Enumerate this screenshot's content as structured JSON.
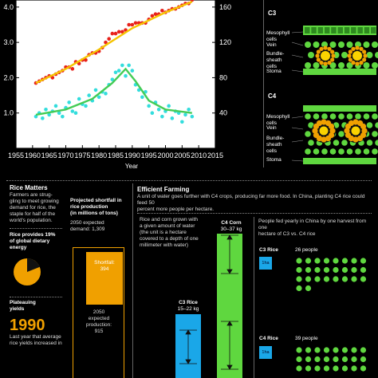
{
  "chart_data": {
    "type": "scatter",
    "xlabel": "Year",
    "x_ticks": [
      "1955",
      "1960",
      "1965",
      "1970",
      "1975",
      "1980",
      "1985",
      "1990",
      "1995",
      "2000",
      "2005",
      "2010",
      "2015"
    ],
    "y_left_ticks": [
      "1.0",
      "2.0",
      "3.0",
      "4.0"
    ],
    "y_right_ticks": [
      "40",
      "80",
      "120",
      "160"
    ],
    "xlim": [
      1955,
      2015
    ],
    "ylim_left": [
      0,
      4.2
    ],
    "ylim_right": [
      0,
      168
    ],
    "series": [
      {
        "axis": "left",
        "color": "#e8221b",
        "fit_color": "#f5c400",
        "points": [
          [
            1961,
            1.85
          ],
          [
            1962,
            1.9
          ],
          [
            1963,
            1.95
          ],
          [
            1964,
            2.0
          ],
          [
            1965,
            2.05
          ],
          [
            1966,
            2.0
          ],
          [
            1967,
            2.1
          ],
          [
            1968,
            2.15
          ],
          [
            1969,
            2.2
          ],
          [
            1970,
            2.3
          ],
          [
            1971,
            2.3
          ],
          [
            1972,
            2.25
          ],
          [
            1973,
            2.45
          ],
          [
            1974,
            2.4
          ],
          [
            1975,
            2.5
          ],
          [
            1976,
            2.5
          ],
          [
            1977,
            2.65
          ],
          [
            1978,
            2.7
          ],
          [
            1979,
            2.7
          ],
          [
            1980,
            2.75
          ],
          [
            1981,
            2.85
          ],
          [
            1982,
            3.0
          ],
          [
            1983,
            3.1
          ],
          [
            1984,
            3.25
          ],
          [
            1985,
            3.25
          ],
          [
            1986,
            3.3
          ],
          [
            1987,
            3.3
          ],
          [
            1988,
            3.35
          ],
          [
            1989,
            3.5
          ],
          [
            1990,
            3.5
          ],
          [
            1991,
            3.55
          ],
          [
            1992,
            3.55
          ],
          [
            1993,
            3.55
          ],
          [
            1994,
            3.55
          ],
          [
            1995,
            3.65
          ],
          [
            1996,
            3.75
          ],
          [
            1997,
            3.8
          ],
          [
            1998,
            3.8
          ],
          [
            1999,
            3.9
          ],
          [
            2000,
            3.85
          ],
          [
            2001,
            3.9
          ],
          [
            2002,
            3.95
          ],
          [
            2003,
            3.95
          ],
          [
            2004,
            4.0
          ],
          [
            2005,
            4.05
          ],
          [
            2006,
            4.1
          ],
          [
            2007,
            4.1
          ],
          [
            2008,
            4.2
          ]
        ],
        "fit": [
          [
            1961,
            1.85
          ],
          [
            1970,
            2.25
          ],
          [
            1980,
            2.8
          ],
          [
            1990,
            3.4
          ],
          [
            2000,
            3.85
          ],
          [
            2008,
            4.15
          ]
        ]
      },
      {
        "axis": "right",
        "color": "#33dddd",
        "fit_color": "#44cc55",
        "points": [
          [
            1961,
            36
          ],
          [
            1962,
            40
          ],
          [
            1963,
            34
          ],
          [
            1964,
            44
          ],
          [
            1965,
            38
          ],
          [
            1966,
            42
          ],
          [
            1967,
            48
          ],
          [
            1968,
            40
          ],
          [
            1969,
            36
          ],
          [
            1970,
            46
          ],
          [
            1971,
            52
          ],
          [
            1972,
            42
          ],
          [
            1973,
            40
          ],
          [
            1974,
            56
          ],
          [
            1975,
            50
          ],
          [
            1976,
            48
          ],
          [
            1977,
            60
          ],
          [
            1978,
            54
          ],
          [
            1979,
            66
          ],
          [
            1980,
            58
          ],
          [
            1981,
            64
          ],
          [
            1982,
            62
          ],
          [
            1983,
            72
          ],
          [
            1984,
            78
          ],
          [
            1985,
            86
          ],
          [
            1986,
            88
          ],
          [
            1987,
            94
          ],
          [
            1988,
            82
          ],
          [
            1989,
            94
          ],
          [
            1990,
            88
          ],
          [
            1991,
            72
          ],
          [
            1992,
            66
          ],
          [
            1993,
            58
          ],
          [
            1994,
            64
          ],
          [
            1995,
            48
          ],
          [
            1996,
            40
          ],
          [
            1997,
            52
          ],
          [
            1998,
            44
          ],
          [
            1999,
            36
          ],
          [
            2000,
            42
          ],
          [
            2001,
            48
          ],
          [
            2002,
            34
          ],
          [
            2003,
            42
          ],
          [
            2004,
            40
          ],
          [
            2005,
            30
          ],
          [
            2006,
            38
          ],
          [
            2007,
            44
          ],
          [
            2008,
            36
          ]
        ],
        "fit": [
          [
            1961,
            38
          ],
          [
            1970,
            44
          ],
          [
            1978,
            56
          ],
          [
            1984,
            74
          ],
          [
            1988,
            90
          ],
          [
            1991,
            76
          ],
          [
            1995,
            54
          ],
          [
            2000,
            44
          ],
          [
            2008,
            40
          ]
        ]
      }
    ]
  },
  "c3_panel": {
    "title": "C3",
    "labels": [
      "Mesophyll cells",
      "Vein",
      "Bundle-sheath cells",
      "Stoma"
    ]
  },
  "c4_panel": {
    "title": "C4",
    "labels": [
      "Mesophyll cells",
      "Vein",
      "Bundle-sheath cells",
      "Stoma"
    ]
  },
  "rice_matters": {
    "title": "Rice Matters",
    "intro": [
      "Farmers are strug-",
      "gling to meet growing",
      "demand for rice, the",
      "staple for half of the",
      "world's population."
    ],
    "calorie_title": [
      "Rice provides 19%",
      "of global dietary",
      "energy"
    ],
    "calorie_share": 0.19,
    "plateau_title": [
      "Plateauing",
      "yields"
    ],
    "big_year": "1990",
    "bottom_text": [
      "Last year that average",
      "rice yields increased in"
    ]
  },
  "shortfall": {
    "title": [
      "Projected shortfall in",
      "rice production",
      "(in millions of tons)"
    ],
    "demand": [
      "2050 expected",
      "demand: 1,309"
    ],
    "box_label": [
      "Shortfall:",
      "394"
    ],
    "production": [
      "2050",
      "expected",
      "production:",
      "915"
    ]
  },
  "efficient": {
    "title": "Efficient Farming",
    "intro": [
      "A unit of water goes further with C4 crops, producing far more food. In China, planting C4 rice could feed 50",
      "percent more people per hectare."
    ],
    "water_text": [
      "Rice and corn grown with",
      "a given amount of water",
      "(the unit is a hectare",
      "covered to a depth of one",
      "millimeter with water)"
    ],
    "c4_corn_label": [
      "C4 Corn",
      "30–37 kg"
    ],
    "c3_rice_label": [
      "C3 Rice",
      "15–22 kg"
    ],
    "people_text": [
      "People fed yearly in China by one harvest from one",
      "hectare of C3 vs. C4 rice"
    ],
    "c3_rice": "C3 Rice",
    "c3_people": "26 people",
    "c4_rice": "C4 Rice",
    "c4_people": "39 people",
    "hectare_tag": "1ha",
    "colors": {
      "green": "#5fd73f",
      "blue": "#1aa7e8",
      "orange": "#f0a000",
      "yellow": "#fbd300"
    }
  }
}
